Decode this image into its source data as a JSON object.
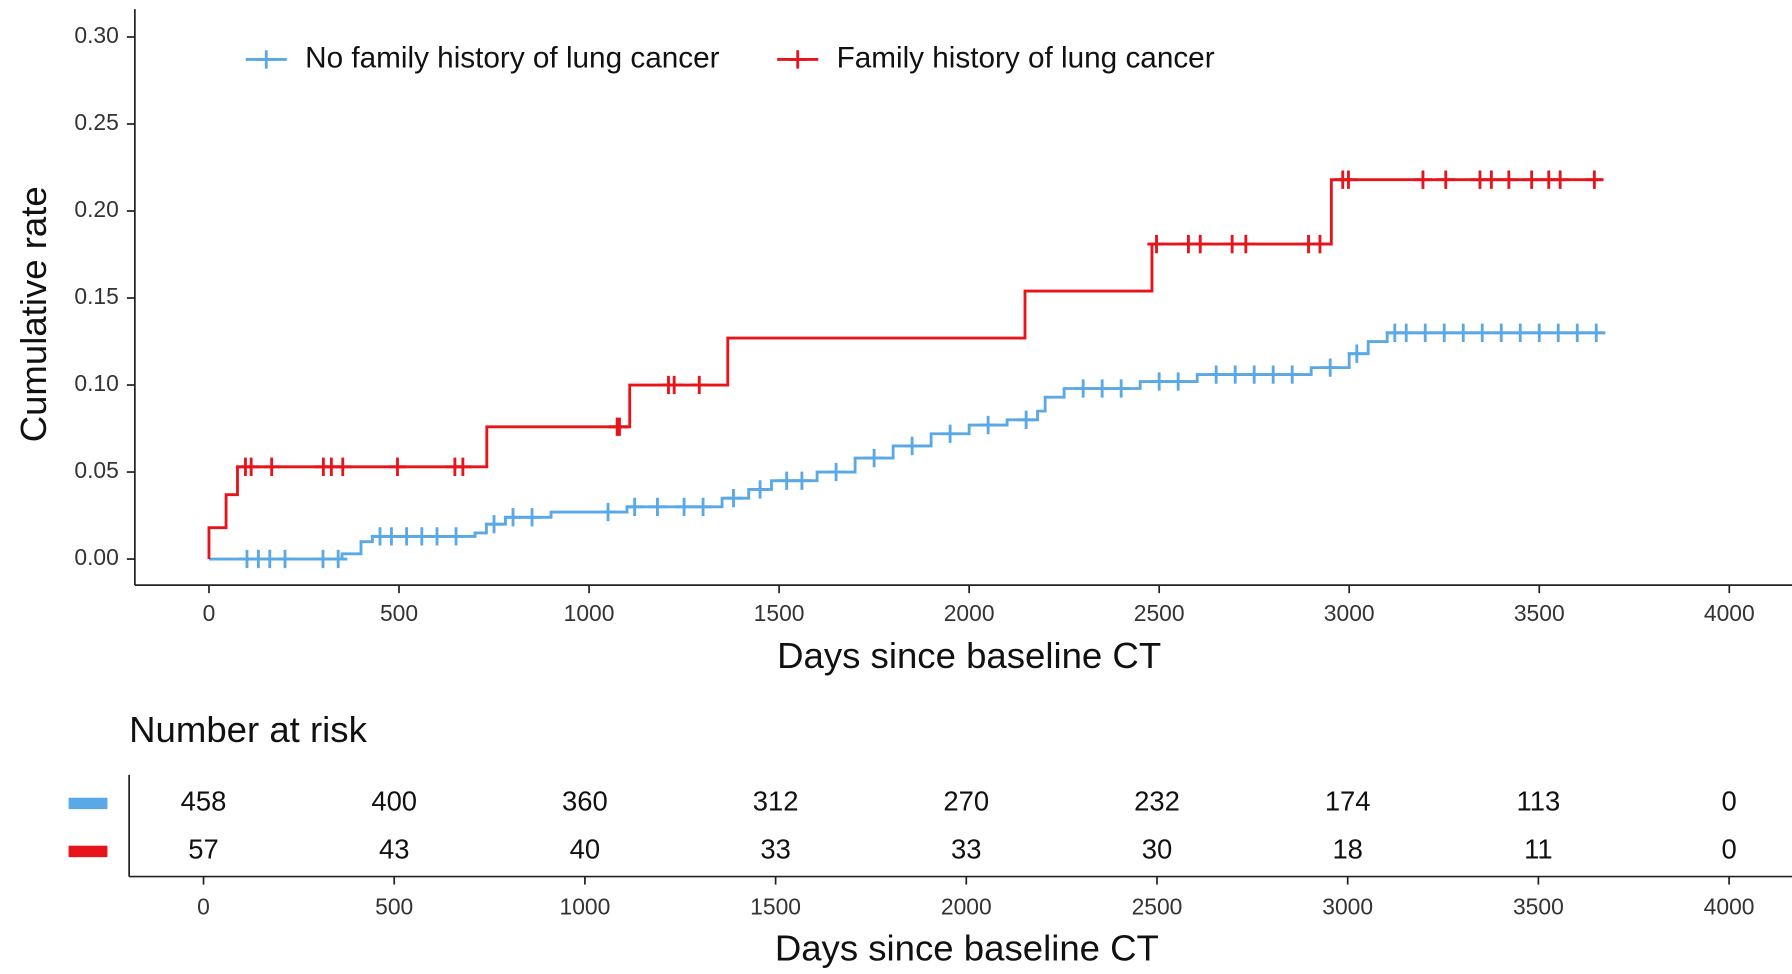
{
  "chart_data": [
    {
      "type": "step",
      "xlabel": "Days since baseline CT",
      "ylabel": "Cumulative rate",
      "xlim": [
        -195,
        4165
      ],
      "ylim": [
        -0.015,
        0.316
      ],
      "xticks": [
        0,
        500,
        1000,
        1500,
        2000,
        2500,
        3000,
        3500,
        4000
      ],
      "yticks": [
        {
          "value": 0,
          "label": "0.00"
        },
        {
          "value": 0.05,
          "label": "0.05"
        },
        {
          "value": 0.1,
          "label": "0.10"
        },
        {
          "value": 0.15,
          "label": "0.15"
        },
        {
          "value": 0.2,
          "label": "0.20"
        },
        {
          "value": 0.25,
          "label": "0.25"
        },
        {
          "value": 0.3,
          "label": "0.30"
        }
      ],
      "series": [
        {
          "name": "No family history of lung cancer",
          "color": "#5aa9e6",
          "x": [
            0,
            350,
            400,
            430,
            700,
            730,
            780,
            900,
            1100,
            1350,
            1420,
            1480,
            1600,
            1700,
            1800,
            1900,
            2000,
            2100,
            2180,
            2200,
            2250,
            2450,
            2600,
            2900,
            3000,
            3050,
            3100,
            3669
          ],
          "values": [
            0,
            0.003,
            0.01,
            0.013,
            0.015,
            0.02,
            0.024,
            0.027,
            0.03,
            0.035,
            0.04,
            0.045,
            0.05,
            0.058,
            0.065,
            0.072,
            0.077,
            0.08,
            0.085,
            0.093,
            0.098,
            0.102,
            0.106,
            0.11,
            0.118,
            0.125,
            0.13,
            0.13
          ],
          "censor_x": [
            100,
            130,
            160,
            200,
            300,
            340,
            450,
            480,
            520,
            560,
            600,
            650,
            750,
            800,
            850,
            1050,
            1120,
            1180,
            1250,
            1300,
            1380,
            1450,
            1520,
            1560,
            1650,
            1750,
            1850,
            1950,
            2050,
            2150,
            2300,
            2350,
            2400,
            2500,
            2550,
            2650,
            2700,
            2750,
            2800,
            2850,
            2950,
            3020,
            3120,
            3150,
            3200,
            3250,
            3300,
            3350,
            3400,
            3450,
            3500,
            3550,
            3600,
            3650
          ],
          "censor_y": [
            0,
            0,
            0,
            0,
            0,
            0,
            0.013,
            0.013,
            0.013,
            0.013,
            0.013,
            0.013,
            0.02,
            0.024,
            0.024,
            0.027,
            0.03,
            0.03,
            0.03,
            0.03,
            0.035,
            0.04,
            0.045,
            0.045,
            0.05,
            0.058,
            0.065,
            0.072,
            0.077,
            0.08,
            0.098,
            0.098,
            0.098,
            0.102,
            0.102,
            0.106,
            0.106,
            0.106,
            0.106,
            0.106,
            0.11,
            0.118,
            0.13,
            0.13,
            0.13,
            0.13,
            0.13,
            0.13,
            0.13,
            0.13,
            0.13,
            0.13,
            0.13,
            0.13
          ]
        },
        {
          "name": "Family history of lung cancer",
          "color": "#e8141c",
          "x": [
            0,
            0,
            45,
            75,
            731,
            1107,
            1365,
            2147,
            2481,
            2953,
            3669
          ],
          "values": [
            0,
            0.018,
            0.037,
            0.053,
            0.076,
            0.1,
            0.127,
            0.154,
            0.181,
            0.218,
            0.218
          ],
          "censor_x": [
            96,
            111,
            165,
            301,
            322,
            352,
            496,
            647,
            668,
            1074,
            1080,
            1209,
            1224,
            1290,
            2493,
            2577,
            2608,
            2692,
            2728,
            2893,
            2923,
            2983,
            2998,
            3194,
            3254,
            3344,
            3374,
            3420,
            3480,
            3525,
            3555,
            3645
          ],
          "censor_y": [
            0.053,
            0.053,
            0.053,
            0.053,
            0.053,
            0.053,
            0.053,
            0.053,
            0.053,
            0.076,
            0.076,
            0.1,
            0.1,
            0.1,
            0.181,
            0.181,
            0.181,
            0.181,
            0.181,
            0.181,
            0.181,
            0.218,
            0.218,
            0.218,
            0.218,
            0.218,
            0.218,
            0.218,
            0.218,
            0.218,
            0.218,
            0.218
          ]
        }
      ]
    },
    {
      "type": "risk_table",
      "title": "Number at risk",
      "xlabel": "Days since baseline CT",
      "xlim": [
        -195,
        4165
      ],
      "xticks": [
        0,
        500,
        1000,
        1500,
        2000,
        2500,
        3000,
        3500,
        4000
      ],
      "x": [
        0,
        500,
        1000,
        1500,
        2000,
        2500,
        3000,
        3500,
        4000
      ],
      "series": [
        {
          "color": "#5aa9e6",
          "values": [
            458,
            400,
            360,
            312,
            270,
            232,
            174,
            113,
            0
          ]
        },
        {
          "color": "#e8141c",
          "values": [
            57,
            43,
            40,
            33,
            33,
            30,
            18,
            11,
            0
          ]
        }
      ]
    }
  ]
}
